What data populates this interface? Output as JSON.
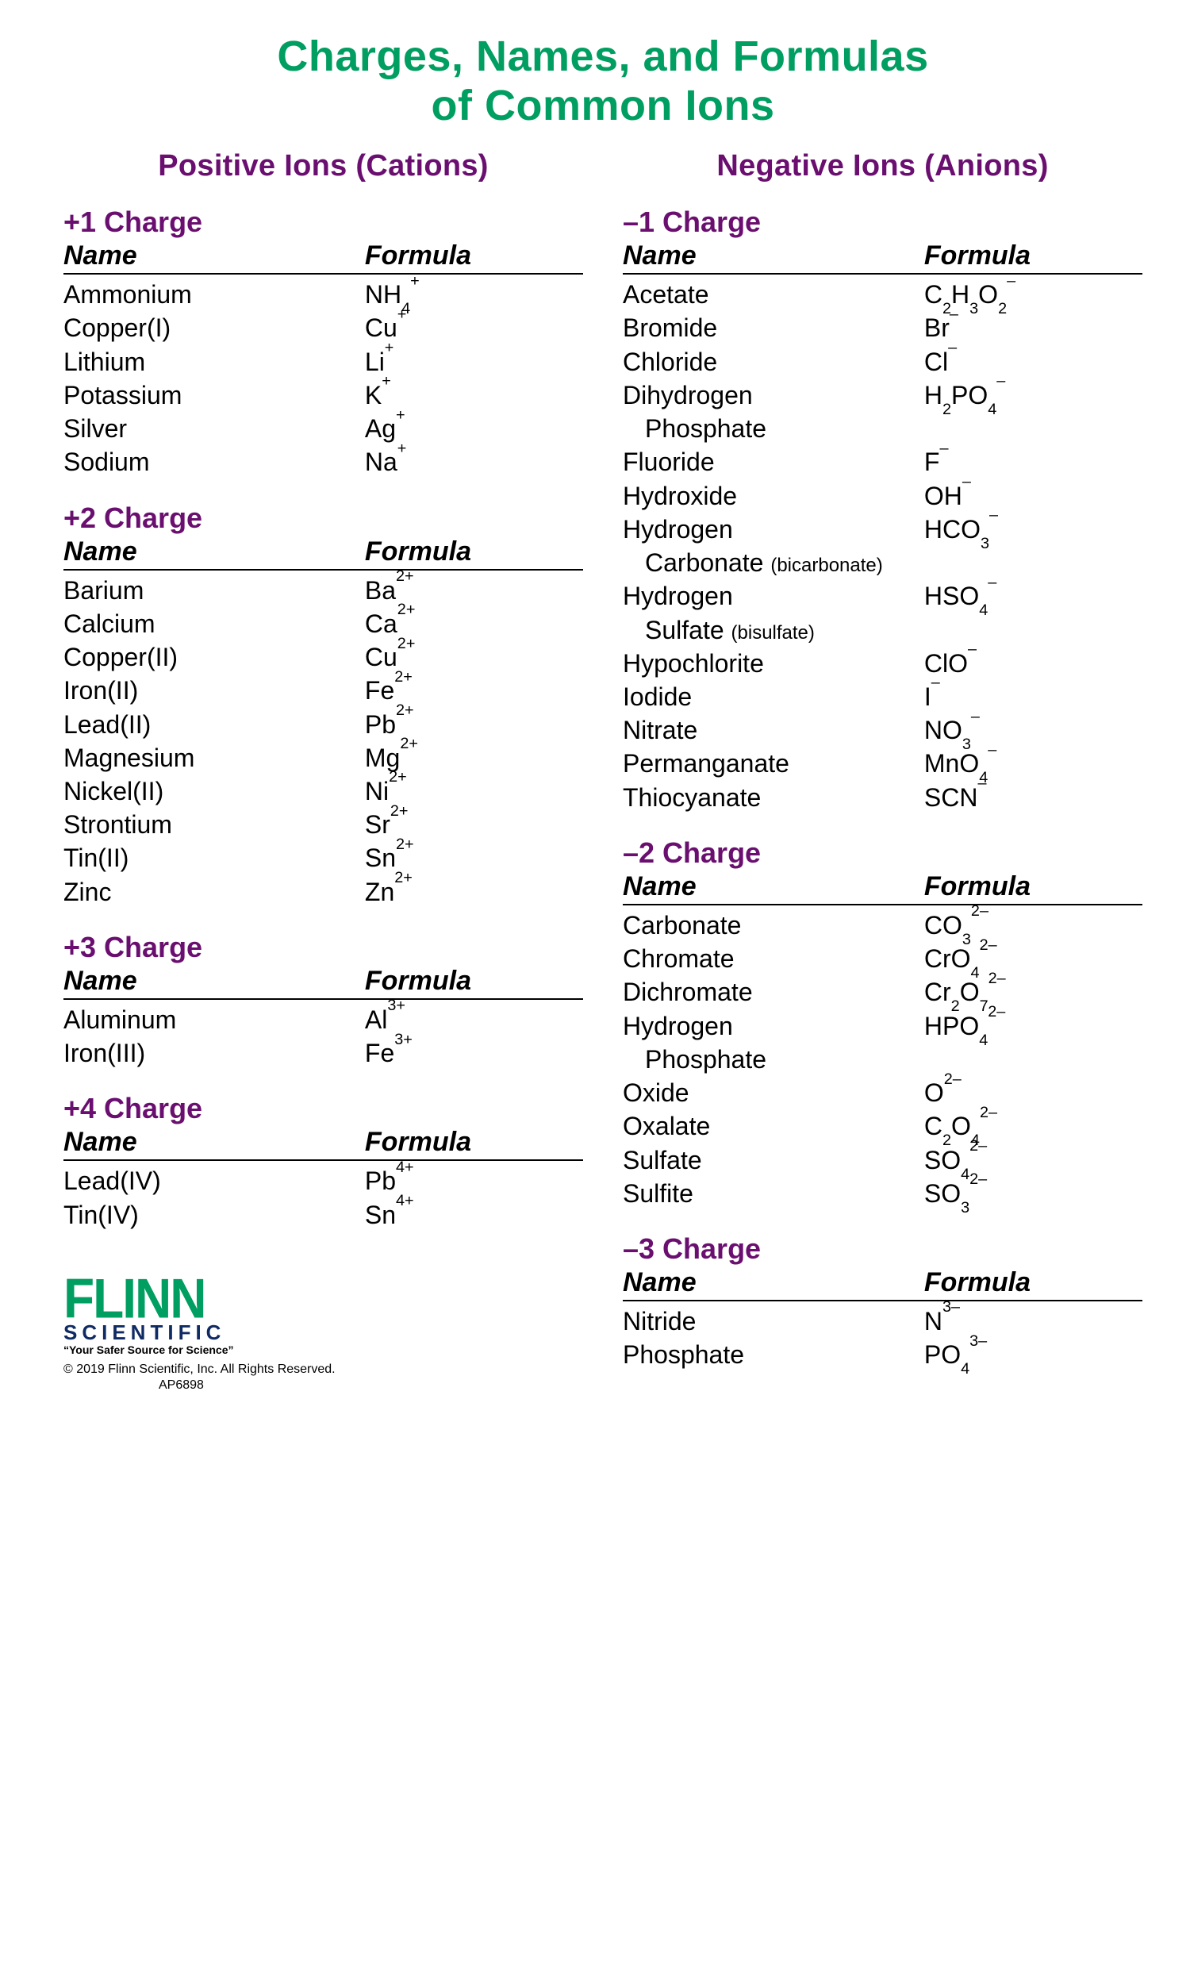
{
  "colors": {
    "green": "#009e60",
    "purple": "#6a0f70",
    "text": "#000000",
    "bg": "#ffffff"
  },
  "typography": {
    "main_title_fs": 54,
    "section_title_fs": 38,
    "charge_fs": 36,
    "header_fs": 34,
    "body_fs": 32
  },
  "title_line1": "Charges, Names, and Formulas",
  "title_line2": "of Common Ions",
  "cations": {
    "title": "Positive Ions (Cations)",
    "name_header": "Name",
    "formula_header": "Formula",
    "groups": [
      {
        "heading": "+1 Charge",
        "rows": [
          {
            "name": "Ammonium",
            "formula": "NH<sub>4</sub><sup>+</sup>"
          },
          {
            "name": "Copper(I)",
            "formula": "Cu<sup>+</sup>"
          },
          {
            "name": "Lithium",
            "formula": "Li<sup>+</sup>"
          },
          {
            "name": "Potassium",
            "formula": "K<sup>+</sup>"
          },
          {
            "name": "Silver",
            "formula": "Ag<sup>+</sup>"
          },
          {
            "name": "Sodium",
            "formula": "Na<sup>+</sup>"
          }
        ]
      },
      {
        "heading": "+2 Charge",
        "rows": [
          {
            "name": "Barium",
            "formula": "Ba<sup>2+</sup>"
          },
          {
            "name": "Calcium",
            "formula": "Ca<sup>2+</sup>"
          },
          {
            "name": "Copper(II)",
            "formula": "Cu<sup>2+</sup>"
          },
          {
            "name": "Iron(II)",
            "formula": "Fe<sup>2+</sup>"
          },
          {
            "name": "Lead(II)",
            "formula": "Pb<sup>2+</sup>"
          },
          {
            "name": "Magnesium",
            "formula": "Mg<sup>2+</sup>"
          },
          {
            "name": "Nickel(II)",
            "formula": "Ni<sup>2+</sup>"
          },
          {
            "name": "Strontium",
            "formula": "Sr<sup>2+</sup>"
          },
          {
            "name": "Tin(II)",
            "formula": "Sn<sup>2+</sup>"
          },
          {
            "name": "Zinc",
            "formula": "Zn<sup>2+</sup>"
          }
        ]
      },
      {
        "heading": "+3 Charge",
        "rows": [
          {
            "name": "Aluminum",
            "formula": "Al<sup>3+</sup>"
          },
          {
            "name": "Iron(III)",
            "formula": "Fe<sup>3+</sup>"
          }
        ]
      },
      {
        "heading": "+4 Charge",
        "rows": [
          {
            "name": "Lead(IV)",
            "formula": "Pb<sup>4+</sup>"
          },
          {
            "name": "Tin(IV)",
            "formula": "Sn<sup>4+</sup>"
          }
        ]
      }
    ]
  },
  "anions": {
    "title": "Negative Ions (Anions)",
    "name_header": "Name",
    "formula_header": "Formula",
    "groups": [
      {
        "heading": "–1 Charge",
        "rows": [
          {
            "name": "Acetate",
            "formula": "C<sub>2</sub>H<sub>3</sub>O<sub>2</sub><sup>–</sup>"
          },
          {
            "name": "Bromide",
            "formula": "Br<sup>–</sup>"
          },
          {
            "name": "Chloride",
            "formula": "Cl<sup>–</sup>"
          },
          {
            "name": "Dihydrogen<span class=\"cont\">Phosphate</span>",
            "formula": "H<sub>2</sub>PO<sub>4</sub><sup>–</sup>"
          },
          {
            "name": "Fluoride",
            "formula": "F<sup>–</sup>"
          },
          {
            "name": "Hydroxide",
            "formula": "OH<sup>–</sup>"
          },
          {
            "name": "Hydrogen<span class=\"cont\">Carbonate <span class=\"note\">(bicarbonate)</span></span>",
            "formula": "HCO<sub>3</sub><sup>–</sup>"
          },
          {
            "name": "Hydrogen<span class=\"cont\">Sulfate <span class=\"note\">(bisulfate)</span></span>",
            "formula": "HSO<sub>4</sub><sup>–</sup>"
          },
          {
            "name": "Hypochlorite",
            "formula": "ClO<sup>–</sup>"
          },
          {
            "name": "Iodide",
            "formula": "I<sup>–</sup>"
          },
          {
            "name": "Nitrate",
            "formula": "NO<sub>3</sub><sup>–</sup>"
          },
          {
            "name": "Permanganate",
            "formula": "MnO<sub>4</sub><sup>–</sup>"
          },
          {
            "name": "Thiocyanate",
            "formula": "SCN<sup>–</sup>"
          }
        ]
      },
      {
        "heading": "–2 Charge",
        "rows": [
          {
            "name": "Carbonate",
            "formula": "CO<sub>3</sub><sup>2–</sup>"
          },
          {
            "name": "Chromate",
            "formula": "CrO<sub>4</sub><sup>2–</sup>"
          },
          {
            "name": "Dichromate",
            "formula": "Cr<sub>2</sub>O<sub>7</sub><sup>2–</sup>"
          },
          {
            "name": "Hydrogen<span class=\"cont\">Phosphate</span>",
            "formula": "HPO<sub>4</sub><sup>2–</sup>"
          },
          {
            "name": "Oxide",
            "formula": "O<sup>2–</sup>"
          },
          {
            "name": "Oxalate",
            "formula": "C<sub>2</sub>O<sub>4</sub><sup>2–</sup>"
          },
          {
            "name": "Sulfate",
            "formula": "SO<sub>4</sub><sup>2–</sup>"
          },
          {
            "name": "Sulfite",
            "formula": "SO<sub>3</sub><sup>2–</sup>"
          }
        ]
      },
      {
        "heading": "–3 Charge",
        "rows": [
          {
            "name": "Nitride",
            "formula": "N<sup>3–</sup>"
          },
          {
            "name": "Phosphate",
            "formula": "PO<sub>4</sub><sup>3–</sup>"
          }
        ]
      }
    ]
  },
  "footer": {
    "logo_main": "FLINN",
    "logo_sub": "SCIENTIFIC",
    "tagline": "“Your Safer Source for Science”",
    "copyright": "© 2019 Flinn Scientific, Inc. All Rights Reserved.",
    "sku": "AP6898"
  }
}
